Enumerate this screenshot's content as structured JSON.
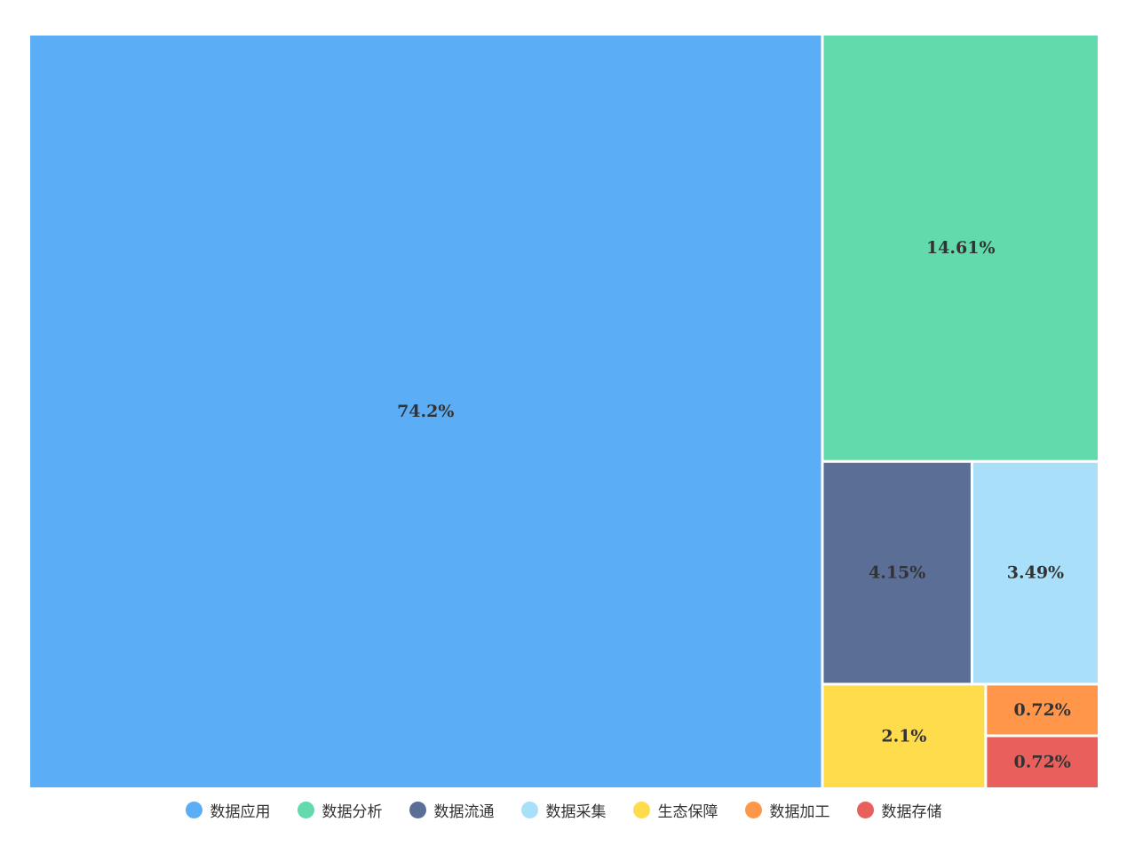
{
  "chart_data": {
    "type": "treemap",
    "title": "",
    "legend_position": "bottom",
    "label_color": "#333333",
    "border_color": "#ffffff",
    "items": [
      {
        "name": "数据应用",
        "value": 74.2,
        "label": "74.2%",
        "color": "#5BAEF5"
      },
      {
        "name": "数据分析",
        "value": 14.61,
        "label": "14.61%",
        "color": "#62DAAB"
      },
      {
        "name": "数据流通",
        "value": 4.15,
        "label": "4.15%",
        "color": "#5B6E96"
      },
      {
        "name": "数据采集",
        "value": 3.49,
        "label": "3.49%",
        "color": "#A9DFF9"
      },
      {
        "name": "生态保障",
        "value": 2.1,
        "label": "2.1%",
        "color": "#FFDC4C"
      },
      {
        "name": "数据加工",
        "value": 0.72,
        "label": "0.72%",
        "color": "#FF964A"
      },
      {
        "name": "数据存储",
        "value": 0.72,
        "label": "0.72%",
        "color": "#E85F5C"
      }
    ]
  }
}
